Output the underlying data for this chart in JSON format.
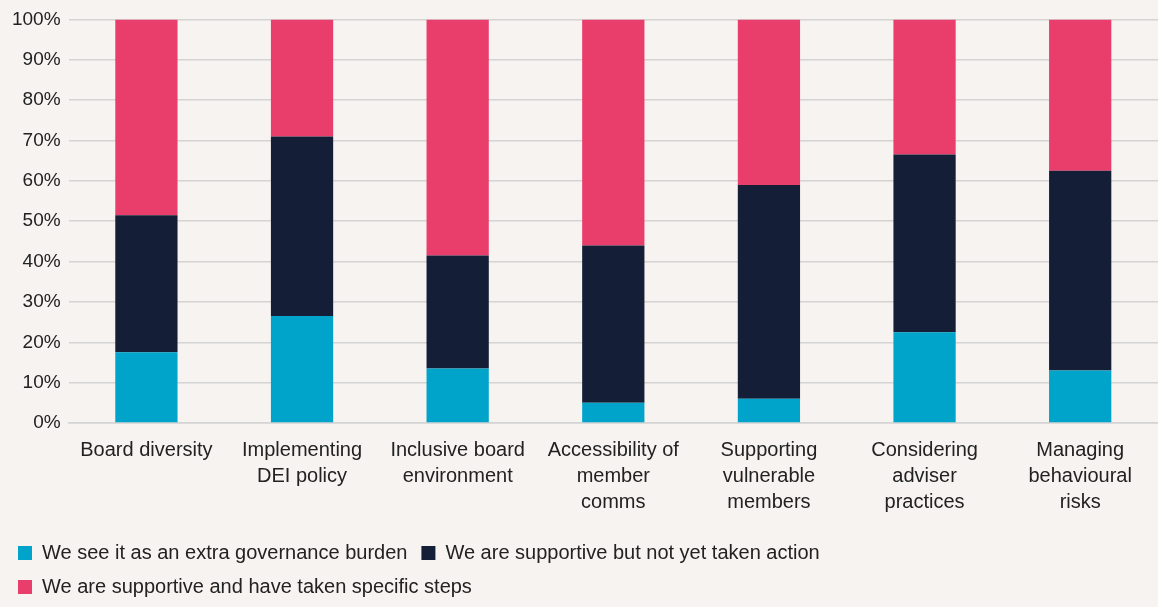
{
  "chart_data": {
    "type": "bar",
    "stacked": true,
    "categories": [
      "Board diversity",
      "Implementing DEI policy",
      "Inclusive board environment",
      "Accessibility of member comms",
      "Supporting vulnerable members",
      "Considering adviser practices",
      "Managing behavioural risks"
    ],
    "series": [
      {
        "name": "We see it as an extra governance burden",
        "color": "#00a3c9",
        "values": [
          17.5,
          26.5,
          13.5,
          5,
          6,
          22.5,
          13
        ]
      },
      {
        "name": "We are supportive but not yet taken action",
        "color": "#141e36",
        "values": [
          34,
          44.5,
          28,
          39,
          53,
          44,
          49.5
        ]
      },
      {
        "name": "We are supportive and have taken specific steps",
        "color": "#e93e6c",
        "values": [
          48.5,
          29,
          58.5,
          56,
          41,
          33.5,
          37.5
        ]
      }
    ],
    "ylim": [
      0,
      100
    ],
    "yticks": [
      {
        "value": 0,
        "label": "0%"
      },
      {
        "value": 10,
        "label": "10%"
      },
      {
        "value": 20,
        "label": "20%"
      },
      {
        "value": 30,
        "label": "30%"
      },
      {
        "value": 40,
        "label": "40%"
      },
      {
        "value": 50,
        "label": "50%"
      },
      {
        "value": 60,
        "label": "60%"
      },
      {
        "value": 70,
        "label": "70%"
      },
      {
        "value": 80,
        "label": "80%"
      },
      {
        "value": 90,
        "label": "90%"
      },
      {
        "value": 100,
        "label": "100%"
      }
    ],
    "grid": "y",
    "legend": "bottom"
  }
}
